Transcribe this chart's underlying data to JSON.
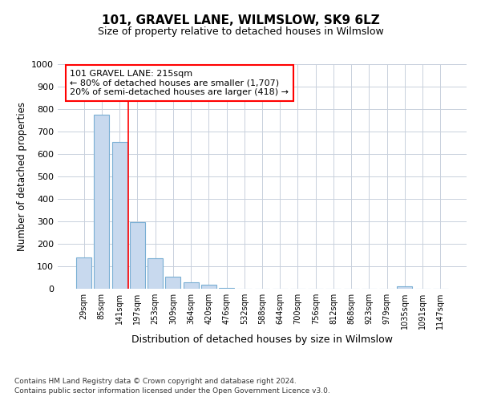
{
  "title": "101, GRAVEL LANE, WILMSLOW, SK9 6LZ",
  "subtitle": "Size of property relative to detached houses in Wilmslow",
  "xlabel": "Distribution of detached houses by size in Wilmslow",
  "ylabel": "Number of detached properties",
  "bar_color": "#c8d9ee",
  "bar_edge_color": "#7aafd4",
  "categories": [
    "29sqm",
    "85sqm",
    "141sqm",
    "197sqm",
    "253sqm",
    "309sqm",
    "364sqm",
    "420sqm",
    "476sqm",
    "532sqm",
    "588sqm",
    "644sqm",
    "700sqm",
    "756sqm",
    "812sqm",
    "868sqm",
    "923sqm",
    "979sqm",
    "1035sqm",
    "1091sqm",
    "1147sqm"
  ],
  "values": [
    140,
    775,
    655,
    295,
    135,
    55,
    30,
    18,
    5,
    0,
    0,
    0,
    0,
    0,
    0,
    0,
    0,
    0,
    10,
    0,
    0
  ],
  "ylim": [
    0,
    1000
  ],
  "yticks": [
    0,
    100,
    200,
    300,
    400,
    500,
    600,
    700,
    800,
    900,
    1000
  ],
  "annotation_title": "101 GRAVEL LANE: 215sqm",
  "annotation_line1": "← 80% of detached houses are smaller (1,707)",
  "annotation_line2": "20% of semi-detached houses are larger (418) →",
  "red_line_x": 2.5,
  "footnote1": "Contains HM Land Registry data © Crown copyright and database right 2024.",
  "footnote2": "Contains public sector information licensed under the Open Government Licence v3.0.",
  "background_color": "#ffffff",
  "grid_color": "#c8d0dc"
}
